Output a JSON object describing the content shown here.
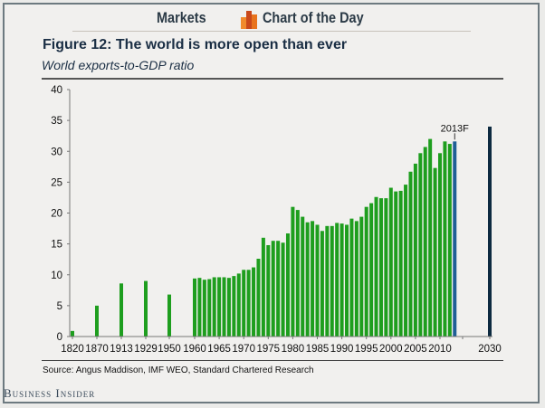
{
  "header": {
    "left_label": "Markets",
    "right_label": "Chart of the Day",
    "logo_icon": "bar-chart-logo-icon"
  },
  "figure": {
    "title": "Figure 12: The world is more open than ever",
    "subtitle": "World exports-to-GDP ratio",
    "source": "Source: Angus Maddison, IMF WEO, Standard Chartered Research"
  },
  "footer": {
    "brand": "Business Insider"
  },
  "colors": {
    "actual_bar": "#1e9e1e",
    "forecast_bar": "#1f5f96",
    "long_forecast_bar": "#0d2a40",
    "logo_orange": "#e8731c",
    "logo_dark": "#c9481a"
  },
  "chart_data": {
    "type": "bar",
    "title": "Figure 12: The world is more open than ever",
    "subtitle": "World exports-to-GDP ratio",
    "xlabel": "",
    "ylabel": "",
    "ylim": [
      0,
      40
    ],
    "yticks": [
      0,
      5,
      10,
      15,
      20,
      25,
      30,
      35,
      40
    ],
    "xtick_labels": [
      "1820",
      "1870",
      "1913",
      "1929",
      "1950",
      "1960",
      "1965",
      "1970",
      "1975",
      "1980",
      "1985",
      "1990",
      "1995",
      "2000",
      "2005",
      "2010",
      "2030"
    ],
    "grid": false,
    "annotations": [
      {
        "label": "2013F",
        "target": "2013"
      }
    ],
    "categories": [
      "1820",
      "1870",
      "1913",
      "1929",
      "1950",
      "1960",
      "1961",
      "1962",
      "1963",
      "1964",
      "1965",
      "1966",
      "1967",
      "1968",
      "1969",
      "1970",
      "1971",
      "1972",
      "1973",
      "1974",
      "1975",
      "1976",
      "1977",
      "1978",
      "1979",
      "1980",
      "1981",
      "1982",
      "1983",
      "1984",
      "1985",
      "1986",
      "1987",
      "1988",
      "1989",
      "1990",
      "1991",
      "1992",
      "1993",
      "1994",
      "1995",
      "1996",
      "1997",
      "1998",
      "1999",
      "2000",
      "2001",
      "2002",
      "2003",
      "2004",
      "2005",
      "2006",
      "2007",
      "2008",
      "2009",
      "2010",
      "2011",
      "2012",
      "2013",
      "2030"
    ],
    "values": [
      0.9,
      5.0,
      8.6,
      9.0,
      6.8,
      9.4,
      9.5,
      9.2,
      9.3,
      9.6,
      9.6,
      9.6,
      9.5,
      9.8,
      10.2,
      10.8,
      10.8,
      11.2,
      12.6,
      16.0,
      14.8,
      15.5,
      15.5,
      15.2,
      16.7,
      21.0,
      20.5,
      19.4,
      18.5,
      18.7,
      18.1,
      17.1,
      17.9,
      17.9,
      18.4,
      18.3,
      18.1,
      19.1,
      18.7,
      19.4,
      21.0,
      21.6,
      22.6,
      22.4,
      22.4,
      24.1,
      23.5,
      23.6,
      24.6,
      26.7,
      28.0,
      29.7,
      30.7,
      32.0,
      27.3,
      29.7,
      31.6,
      31.2,
      31.6,
      34.0
    ],
    "series_type": [
      "actual",
      "actual",
      "actual",
      "actual",
      "actual",
      "actual",
      "actual",
      "actual",
      "actual",
      "actual",
      "actual",
      "actual",
      "actual",
      "actual",
      "actual",
      "actual",
      "actual",
      "actual",
      "actual",
      "actual",
      "actual",
      "actual",
      "actual",
      "actual",
      "actual",
      "actual",
      "actual",
      "actual",
      "actual",
      "actual",
      "actual",
      "actual",
      "actual",
      "actual",
      "actual",
      "actual",
      "actual",
      "actual",
      "actual",
      "actual",
      "actual",
      "actual",
      "actual",
      "actual",
      "actual",
      "actual",
      "actual",
      "actual",
      "actual",
      "actual",
      "actual",
      "actual",
      "actual",
      "actual",
      "actual",
      "actual",
      "actual",
      "actual",
      "forecast",
      "long_forecast"
    ]
  }
}
